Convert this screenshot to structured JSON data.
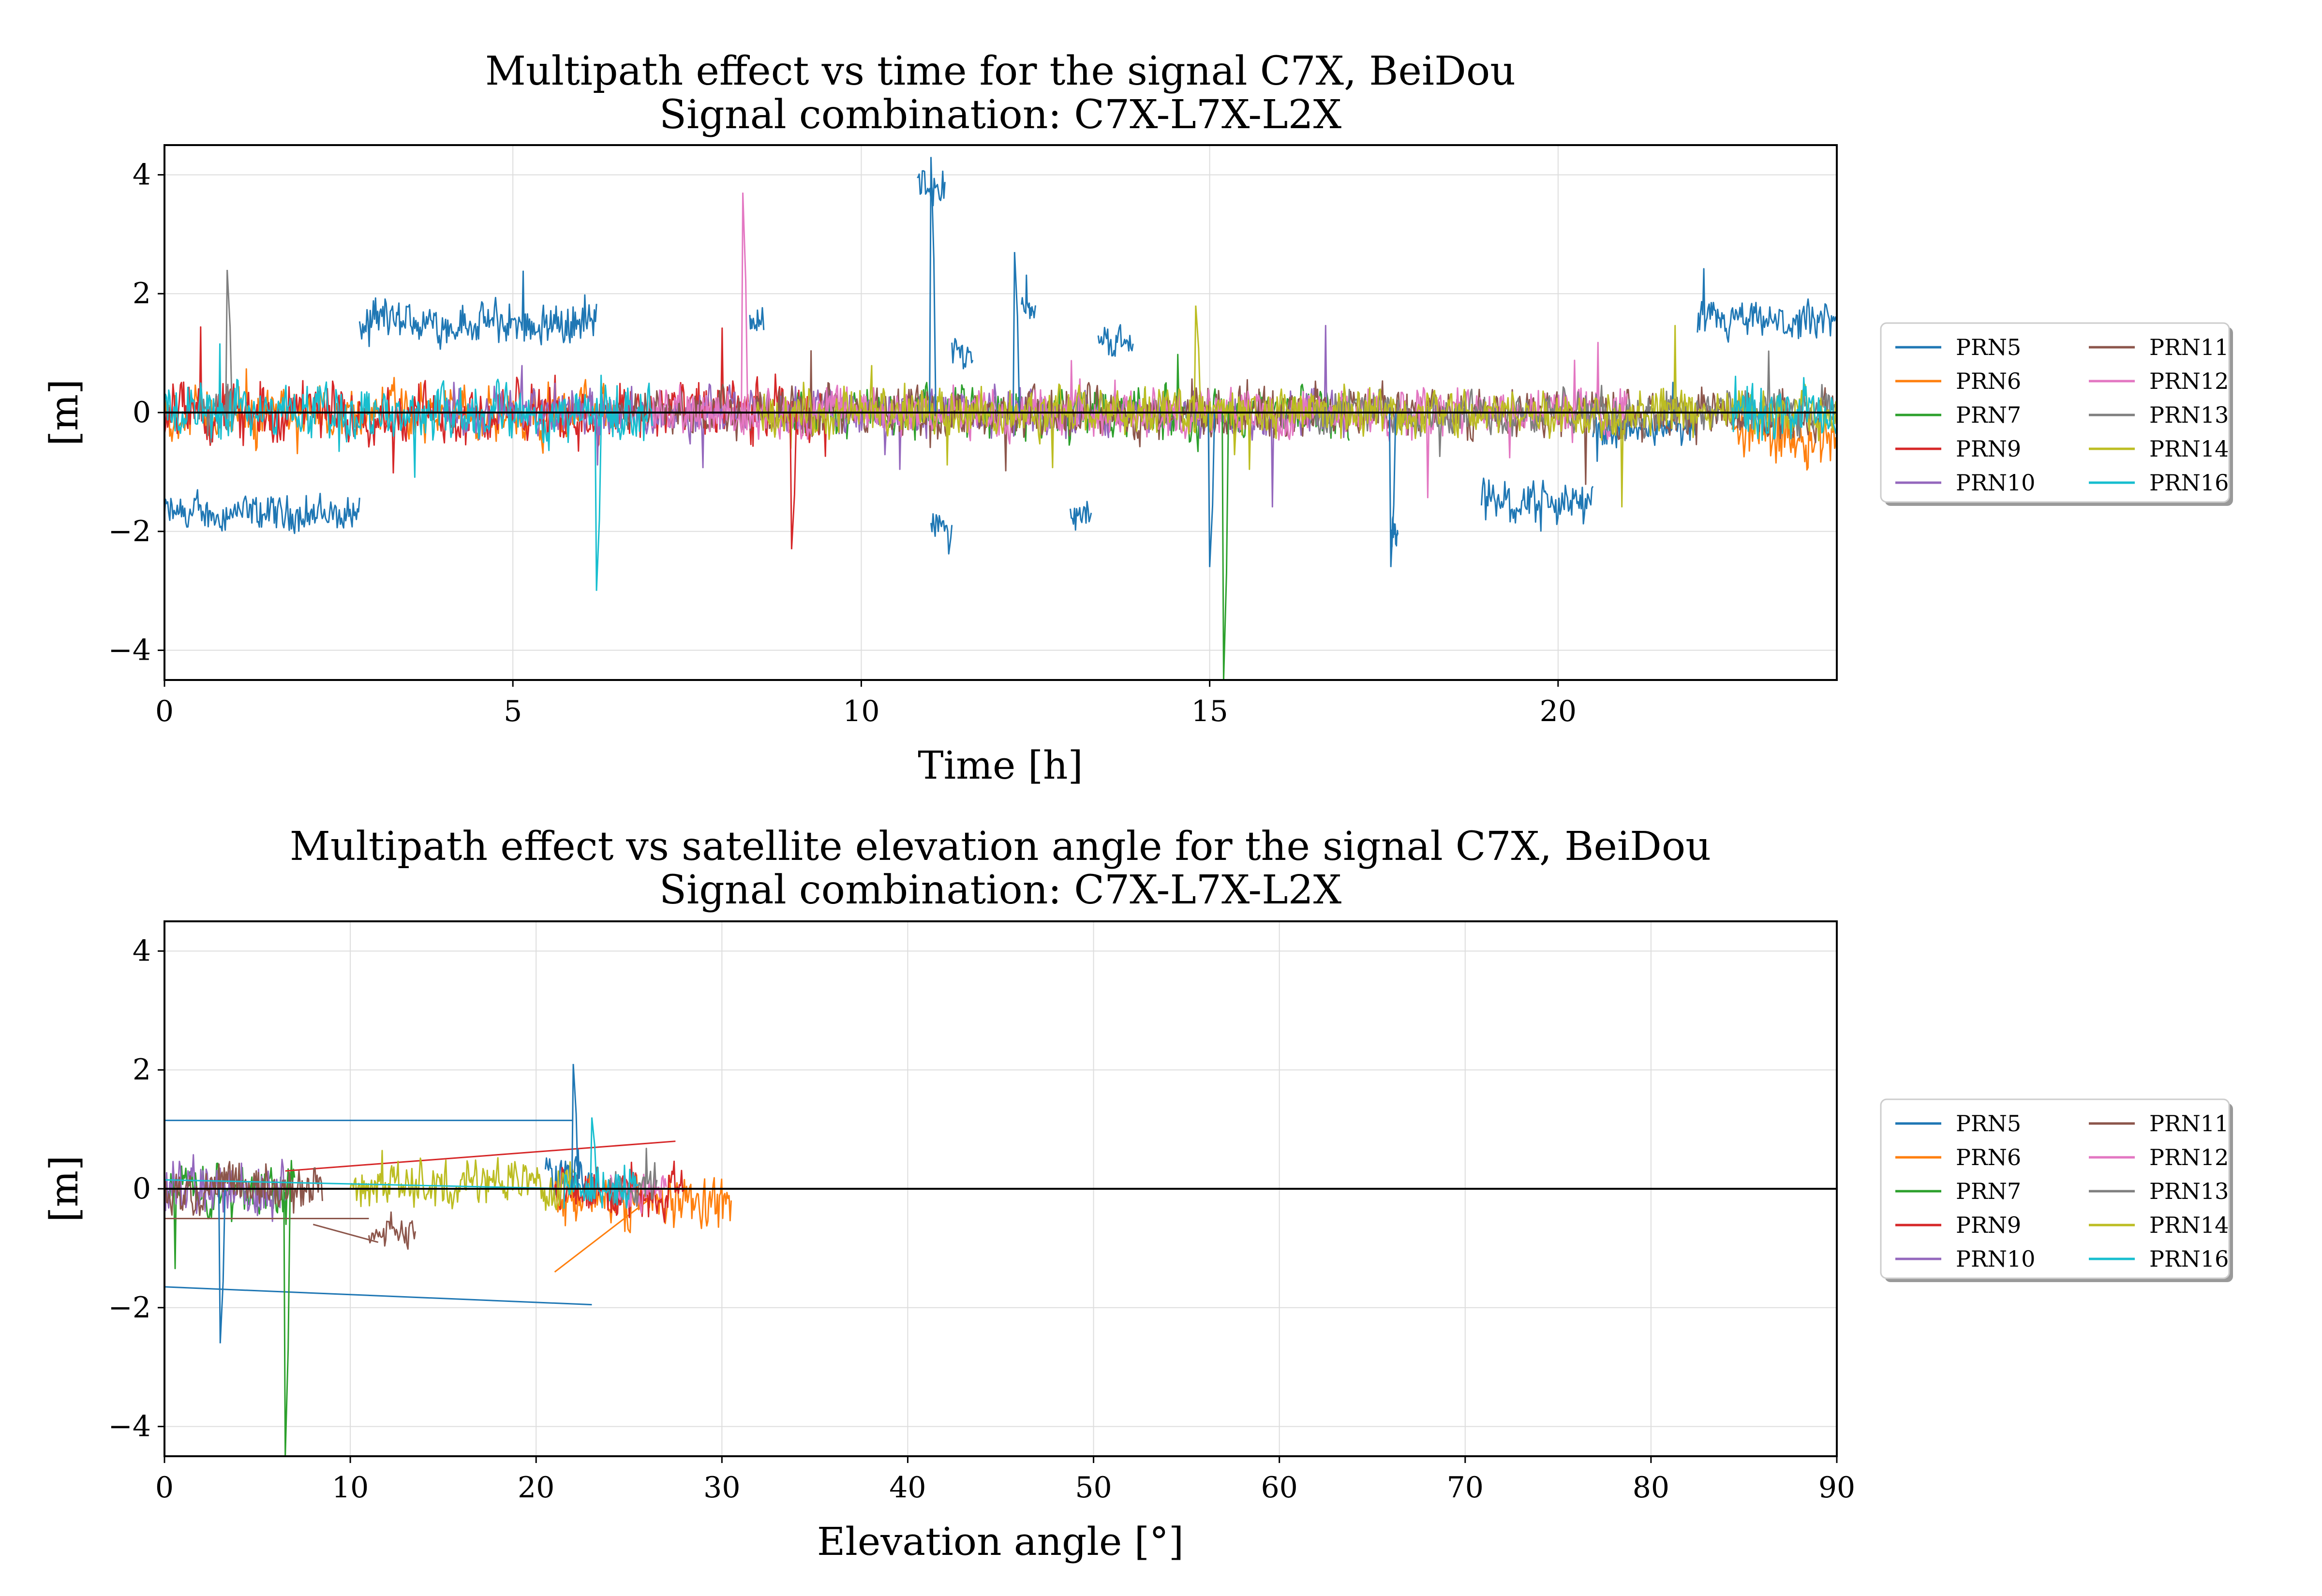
{
  "chart_data": [
    {
      "type": "line",
      "title": "Multipath effect vs time for the signal C7X, BeiDou",
      "subtitle": "Signal combination: C7X-L7X-L2X",
      "xlabel": "Time [h]",
      "ylabel": "[m]",
      "xlim": [
        0,
        24
      ],
      "ylim": [
        -4.5,
        4.5
      ],
      "xticks": [
        "0",
        "5",
        "10",
        "15",
        "20"
      ],
      "yticks": [
        "−4",
        "−2",
        "0",
        "2",
        "4"
      ],
      "grid": true,
      "legend_placement": "right, outside the axes, 2 columns",
      "series": [
        {
          "name": "PRN5",
          "color": "#1f77b4",
          "segments": [
            {
              "x0": 0.0,
              "x1": 2.8,
              "level": -1.7,
              "noise": 0.35
            },
            {
              "x0": 2.8,
              "x1": 6.2,
              "level": 1.5,
              "noise": 0.4
            },
            {
              "x0": 8.4,
              "x1": 8.6,
              "level": 1.6,
              "noise": 0.3
            },
            {
              "x0": 10.8,
              "x1": 11.2,
              "level": 3.8,
              "noise": 0.4
            },
            {
              "x0": 11.0,
              "x1": 11.3,
              "level": -2.0,
              "noise": 0.4
            },
            {
              "x0": 11.3,
              "x1": 11.6,
              "level": 1.0,
              "noise": 0.3
            },
            {
              "x0": 12.3,
              "x1": 12.5,
              "level": 1.8,
              "noise": 0.3
            },
            {
              "x0": 13.0,
              "x1": 13.3,
              "level": -1.7,
              "noise": 0.3
            },
            {
              "x0": 13.4,
              "x1": 13.9,
              "level": 1.2,
              "noise": 0.3
            },
            {
              "x0": 17.6,
              "x1": 17.7,
              "level": -2.0,
              "noise": 0.3
            },
            {
              "x0": 18.9,
              "x1": 20.5,
              "level": -1.5,
              "noise": 0.4
            },
            {
              "x0": 20.5,
              "x1": 22.0,
              "level": -0.3,
              "noise": 0.3
            },
            {
              "x0": 22.0,
              "x1": 24.0,
              "level": 1.5,
              "noise": 0.35
            }
          ]
        },
        {
          "name": "PRN6",
          "color": "#ff7f0e",
          "segments": [
            {
              "x0": 0.0,
              "x1": 6.5,
              "level": 0.0,
              "noise": 0.5
            },
            {
              "x0": 22.5,
              "x1": 24.0,
              "level": -0.3,
              "noise": 0.6
            }
          ]
        },
        {
          "name": "PRN7",
          "color": "#2ca02c",
          "segments": [
            {
              "x0": 9.0,
              "x1": 17.0,
              "level": 0.0,
              "noise": 0.45
            }
          ]
        },
        {
          "name": "PRN9",
          "color": "#d62728",
          "segments": [
            {
              "x0": 0.0,
              "x1": 9.5,
              "level": 0.0,
              "noise": 0.55
            }
          ]
        },
        {
          "name": "PRN10",
          "color": "#9467bd",
          "segments": [
            {
              "x0": 4.0,
              "x1": 17.0,
              "level": 0.0,
              "noise": 0.45
            }
          ]
        },
        {
          "name": "PRN11",
          "color": "#8c564b",
          "segments": [
            {
              "x0": 6.5,
              "x1": 24.0,
              "level": 0.0,
              "noise": 0.45
            }
          ]
        },
        {
          "name": "PRN12",
          "color": "#e377c2",
          "segments": [
            {
              "x0": 7.0,
              "x1": 21.0,
              "level": 0.0,
              "noise": 0.45
            }
          ]
        },
        {
          "name": "PRN13",
          "color": "#7f7f7f",
          "segments": [
            {
              "x0": 0.5,
              "x1": 1.0,
              "level": 0.0,
              "noise": 0.5
            },
            {
              "x0": 16.5,
              "x1": 24.0,
              "level": 0.0,
              "noise": 0.4
            }
          ]
        },
        {
          "name": "PRN14",
          "color": "#bcbd22",
          "segments": [
            {
              "x0": 8.5,
              "x1": 24.0,
              "level": 0.0,
              "noise": 0.45
            }
          ]
        },
        {
          "name": "PRN16",
          "color": "#17becf",
          "segments": [
            {
              "x0": 0.0,
              "x1": 7.0,
              "level": 0.0,
              "noise": 0.5
            },
            {
              "x0": 22.5,
              "x1": 24.0,
              "level": 0.0,
              "noise": 0.5
            }
          ]
        }
      ],
      "spikes": [
        {
          "series": "PRN5",
          "x": 11.0,
          "y": 4.3
        },
        {
          "series": "PRN5",
          "x": 12.2,
          "y": 2.7
        },
        {
          "series": "PRN5",
          "x": 15.0,
          "y": -2.6
        },
        {
          "series": "PRN5",
          "x": 17.6,
          "y": -2.6
        },
        {
          "series": "PRN7",
          "x": 15.2,
          "y": -4.5
        },
        {
          "series": "PRN13",
          "x": 0.9,
          "y": 2.4
        },
        {
          "series": "PRN12",
          "x": 8.3,
          "y": 3.7
        },
        {
          "series": "PRN16",
          "x": 6.2,
          "y": -3.0
        },
        {
          "series": "PRN9",
          "x": 9.0,
          "y": -2.3
        },
        {
          "series": "PRN14",
          "x": 14.8,
          "y": 1.8
        }
      ]
    },
    {
      "type": "line",
      "title": "Multipath effect vs satellite elevation angle for the signal C7X, BeiDou",
      "subtitle": "Signal combination: C7X-L7X-L2X",
      "xlabel": "Elevation angle [°]",
      "ylabel": "[m]",
      "xlim": [
        0,
        90
      ],
      "ylim": [
        -4.5,
        4.5
      ],
      "xticks": [
        "0",
        "10",
        "20",
        "30",
        "40",
        "50",
        "60",
        "70",
        "80",
        "90"
      ],
      "yticks": [
        "−4",
        "−2",
        "0",
        "2",
        "4"
      ],
      "grid": true,
      "legend_placement": "right, outside the axes, 2 columns",
      "series": [
        {
          "name": "PRN5",
          "color": "#1f77b4",
          "segments": [
            {
              "x0": 20.5,
              "x1": 23.0,
              "level": 0.2,
              "noise": 0.4
            }
          ],
          "lines": [
            [
              0,
              1.15,
              22.0,
              1.15
            ],
            [
              0,
              -1.65,
              23.0,
              -1.95
            ]
          ]
        },
        {
          "name": "PRN6",
          "color": "#ff7f0e",
          "segments": [
            {
              "x0": 21.0,
              "x1": 30.5,
              "level": -0.2,
              "noise": 0.5
            }
          ],
          "lines": [
            [
              21.0,
              -1.4,
              26.0,
              -0.2
            ]
          ]
        },
        {
          "name": "PRN7",
          "color": "#2ca02c",
          "segments": [
            {
              "x0": 0.0,
              "x1": 7.0,
              "level": 0.0,
              "noise": 0.5
            }
          ]
        },
        {
          "name": "PRN9",
          "color": "#d62728",
          "segments": [
            {
              "x0": 21.0,
              "x1": 28.0,
              "level": 0.0,
              "noise": 0.5
            }
          ],
          "lines": [
            [
              6.5,
              0.3,
              27.5,
              0.8
            ]
          ]
        },
        {
          "name": "PRN10",
          "color": "#9467bd",
          "segments": [
            {
              "x0": 0.0,
              "x1": 6.5,
              "level": 0.0,
              "noise": 0.55
            }
          ]
        },
        {
          "name": "PRN11",
          "color": "#8c564b",
          "segments": [
            {
              "x0": 0.0,
              "x1": 8.5,
              "level": 0.0,
              "noise": 0.45
            },
            {
              "x0": 11.0,
              "x1": 13.5,
              "level": -0.7,
              "noise": 0.3
            }
          ],
          "lines": [
            [
              0,
              -0.5,
              11.0,
              -0.5
            ],
            [
              8.0,
              -0.6,
              11.5,
              -0.9
            ]
          ]
        },
        {
          "name": "PRN12",
          "color": "#e377c2",
          "segments": [
            {
              "x0": 24.0,
              "x1": 27.0,
              "level": 0.0,
              "noise": 0.35
            }
          ]
        },
        {
          "name": "PRN13",
          "color": "#7f7f7f",
          "segments": [
            {
              "x0": 24.0,
              "x1": 26.5,
              "level": 0.0,
              "noise": 0.35
            }
          ]
        },
        {
          "name": "PRN14",
          "color": "#bcbd22",
          "segments": [
            {
              "x0": 10.0,
              "x1": 22.0,
              "level": 0.1,
              "noise": 0.45
            }
          ]
        },
        {
          "name": "PRN16",
          "color": "#17becf",
          "segments": [
            {
              "x0": 21.5,
              "x1": 25.5,
              "level": 0.0,
              "noise": 0.45
            }
          ],
          "lines": [
            [
              0,
              0.15,
              22.0,
              0.0
            ]
          ]
        }
      ],
      "spikes": [
        {
          "series": "PRN5",
          "x": 22.0,
          "y": 2.1
        },
        {
          "series": "PRN5",
          "x": 3.0,
          "y": -2.6
        },
        {
          "series": "PRN7",
          "x": 6.5,
          "y": -4.5
        },
        {
          "series": "PRN16",
          "x": 23.0,
          "y": 1.2
        }
      ]
    }
  ]
}
